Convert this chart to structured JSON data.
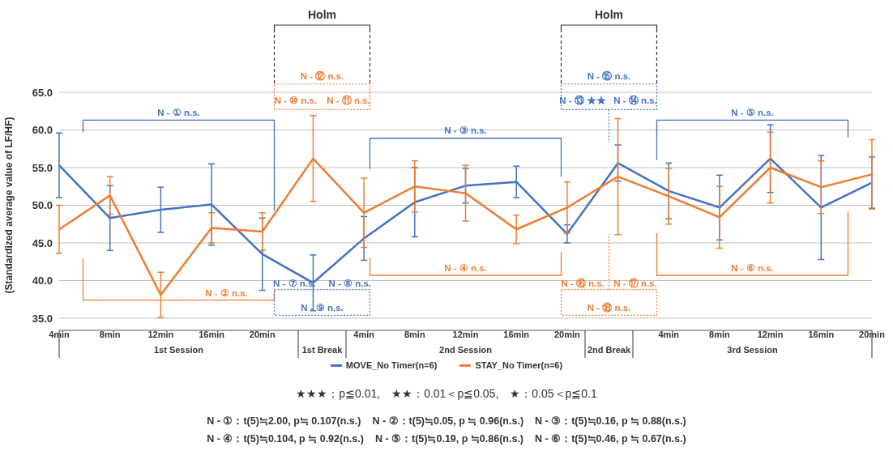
{
  "chart_data": {
    "type": "line",
    "ylabel": "(Standardized average value of LF/HF)",
    "categories": [
      "4min",
      "8min",
      "12min",
      "16min",
      "20min",
      null,
      "4min",
      "8min",
      "12min",
      "16min",
      "20min",
      null,
      "4min",
      "8min",
      "12min",
      "16min",
      "20min"
    ],
    "series": [
      {
        "name": "MOVE_No Timer(n=6)",
        "color": "#4472c4",
        "values": [
          55.3,
          48.3,
          49.4,
          50.1,
          43.5,
          39.7,
          45.6,
          50.4,
          52.6,
          53.1,
          46.2,
          55.6,
          51.9,
          49.7,
          56.2,
          49.7,
          53.0
        ],
        "errors": [
          4.3,
          4.3,
          3.0,
          5.4,
          4.8,
          3.7,
          2.9,
          4.6,
          2.3,
          2.1,
          1.2,
          2.4,
          3.7,
          4.3,
          4.5,
          6.9,
          3.4
        ]
      },
      {
        "name": "STAY_No Timer(n=6)",
        "color": "#ed7d31",
        "values": [
          46.8,
          51.3,
          38.1,
          47.0,
          46.5,
          56.2,
          49.0,
          52.5,
          51.6,
          46.8,
          49.7,
          53.8,
          51.2,
          48.4,
          55.0,
          52.4,
          54.1
        ],
        "errors": [
          3.2,
          2.5,
          3.0,
          2.0,
          2.5,
          5.7,
          4.6,
          3.4,
          3.7,
          1.9,
          3.4,
          7.7,
          3.7,
          4.1,
          4.7,
          3.5,
          4.6
        ]
      }
    ],
    "ylim": [
      35,
      65
    ],
    "yticks": [
      {
        "value": 35,
        "label": "35.0"
      },
      {
        "value": 40,
        "label": "40.0"
      },
      {
        "value": 45,
        "label": "45.0"
      },
      {
        "value": 50,
        "label": "50.0"
      },
      {
        "value": 55,
        "label": "55.0"
      },
      {
        "value": 60,
        "label": "60.0"
      },
      {
        "value": 65,
        "label": "65.0"
      }
    ],
    "grid": "y",
    "legend": "bottom",
    "marker": "none",
    "line_style": "solid",
    "annotations": [
      "Holm",
      "Holm",
      "N - ① n.s.",
      "N - ② n.s.",
      "N - ③ n.s.",
      "N - ④ n.s.",
      "N - ⑤ n.s.",
      "N - ⑥ n.s.",
      "N - ⑦ n.s.",
      "N - ⑧ n.s.",
      "N - ⑨ n.s.",
      "N - ⑩ n.s.",
      "N - ⑪ n.s.",
      "N - ⑫ n.s.",
      "N - ⑬ ★★",
      "N - ⑭ n.s.",
      "N - ⑮ n.s.",
      "N - ⑯ n.s.",
      "N - ⑰ n.s.",
      "N - ⑱ n.s.",
      "1st Session",
      "1st Break",
      "2nd Session",
      "2nd Break",
      "3rd Session",
      "★★★：p≦0.01,　★★：0.01＜p≦0.05,　★：0.05＜p≦0.1",
      "N - ①：t(5)≒2.00, p≒ 0.107(n.s.)",
      "N - ②：t(5)≒0.05, p ≒ 0.96(n.s.)",
      "N - ③：t(5)≒0.16, p ≒ 0.88(n.s.)",
      "N - ④：t(5)≒0.104, p ≒ 0.92(n.s.)",
      "N - ⑤：t(5)≒0.19, p ≒0.86(n.s.)",
      "N - ⑥：t(5)≒0.46, p ≒ 0.67(n.s.)"
    ]
  }
}
